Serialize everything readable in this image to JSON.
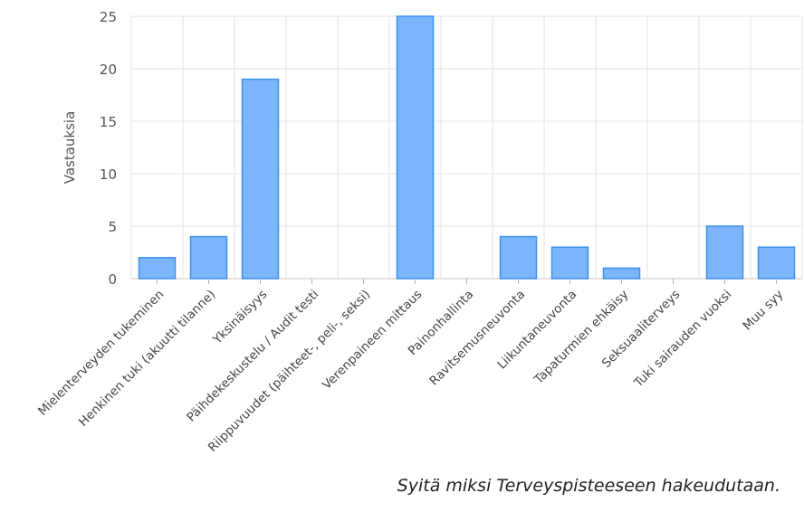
{
  "chart_data": {
    "type": "bar",
    "title": "",
    "xlabel": "",
    "ylabel": "Vastauksia",
    "ylim": [
      0,
      25
    ],
    "yticks": [
      0,
      5,
      10,
      15,
      20,
      25
    ],
    "grid": true,
    "categories": [
      "Mielenterveyden tukeminen",
      "Henkinen tuki (akuutti tilanne)",
      "Yksinäisyys",
      "Päihdekeskustelu / Audit testi",
      "Riippuvuudet (päihteet-, peli-, seksi)",
      "Verenpaineen mittaus",
      "Painonhallinta",
      "Ravitsemusneuvonta",
      "Liikuntaneuvonta",
      "Tapaturmien ehkäisy",
      "Seksuaaliterveys",
      "Tuki sairauden vuoksi",
      "Muu syy"
    ],
    "values": [
      2,
      4,
      19,
      0,
      0,
      25,
      0,
      4,
      3,
      1,
      0,
      5,
      3
    ],
    "bar_color": "#7cb5fb",
    "bar_stroke": "#3f8fef"
  },
  "caption": "Syitä miksi Terveyspisteeseen hakeudutaan."
}
